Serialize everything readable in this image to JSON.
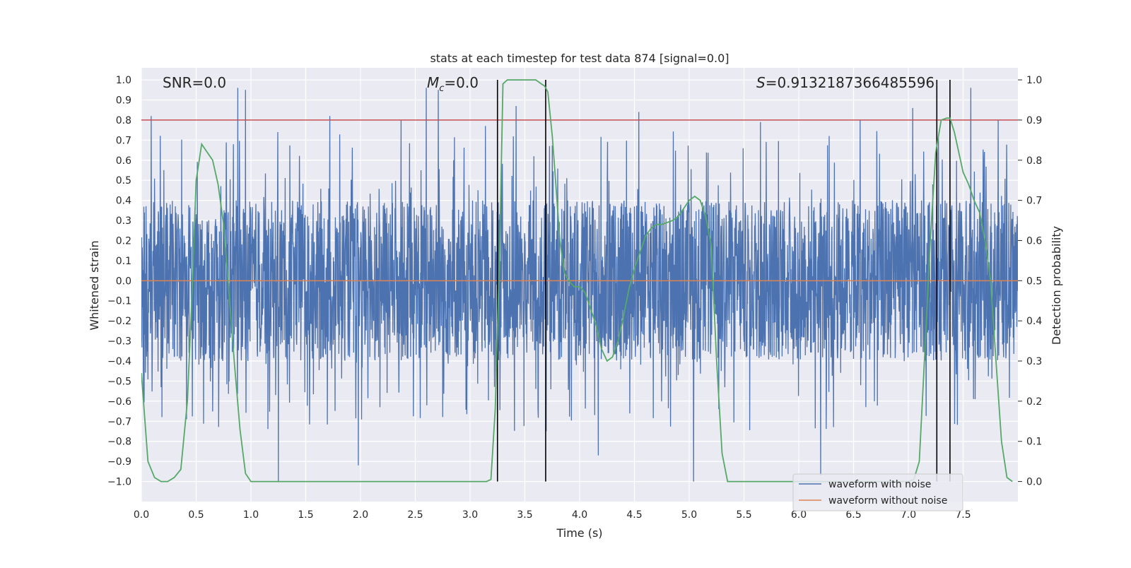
{
  "chart_data": {
    "type": "line",
    "title": "stats at each timestep for test data 874 [signal=0.0]",
    "xlabel": "Time (s)",
    "ylabel": "Whitened strain",
    "y2label": "Detection probability",
    "xlim": [
      0.0,
      8.0
    ],
    "ylim": [
      -1.1,
      1.06
    ],
    "y2lim": [
      -0.05,
      1.03
    ],
    "xticks": [
      "0.0",
      "0.5",
      "1.0",
      "1.5",
      "2.0",
      "2.5",
      "3.0",
      "3.5",
      "4.0",
      "4.5",
      "5.0",
      "5.5",
      "6.0",
      "6.5",
      "7.0",
      "7.5"
    ],
    "xtick_values": [
      0.0,
      0.5,
      1.0,
      1.5,
      2.0,
      2.5,
      3.0,
      3.5,
      4.0,
      4.5,
      5.0,
      5.5,
      6.0,
      6.5,
      7.0,
      7.5
    ],
    "yticks": [
      "−1.0",
      "−0.9",
      "−0.8",
      "−0.7",
      "−0.6",
      "−0.5",
      "−0.4",
      "−0.3",
      "−0.2",
      "−0.1",
      "0.0",
      "0.1",
      "0.2",
      "0.3",
      "0.4",
      "0.5",
      "0.6",
      "0.7",
      "0.8",
      "0.9",
      "1.0"
    ],
    "ytick_values": [
      -1.0,
      -0.9,
      -0.8,
      -0.7,
      -0.6,
      -0.5,
      -0.4,
      -0.3,
      -0.2,
      -0.1,
      0.0,
      0.1,
      0.2,
      0.3,
      0.4,
      0.5,
      0.6,
      0.7,
      0.8,
      0.9,
      1.0
    ],
    "y2ticks": [
      "0.0",
      "0.1",
      "0.2",
      "0.3",
      "0.4",
      "0.5",
      "0.6",
      "0.7",
      "0.8",
      "0.9",
      "1.0"
    ],
    "y2tick_values": [
      0.0,
      0.1,
      0.2,
      0.3,
      0.4,
      0.5,
      0.6,
      0.7,
      0.8,
      0.9,
      1.0
    ],
    "annotations": {
      "snr": "SNR=0.0",
      "mc_symbol": "M",
      "mc_sub": "c",
      "mc_value": "=0.0",
      "s_symbol": "S",
      "s_value": "=0.9132187366485596"
    },
    "legend": {
      "position": "lower-right",
      "entries": [
        {
          "label": "waveform with noise",
          "color": "#4c72b0"
        },
        {
          "label": "waveform without noise",
          "color": "#dd8452"
        }
      ]
    },
    "threshold": {
      "value": 0.9,
      "axis": "y2",
      "color": "#c44e52"
    },
    "clean_waveform_value": 0.0,
    "vertical_markers": [
      3.25,
      3.69,
      7.26,
      7.38
    ],
    "noise_envelope": {
      "typical_upper": 0.4,
      "typical_lower": -0.4,
      "max": 0.96,
      "min": -1.0
    },
    "series": [
      {
        "name": "waveform with noise",
        "color": "#4c72b0",
        "style": "dense-noise",
        "spikes": [
          [
            0.09,
            0.82
          ],
          [
            0.88,
            0.96
          ],
          [
            0.95,
            0.95
          ],
          [
            1.25,
            -1.0
          ],
          [
            1.72,
            0.82
          ],
          [
            1.98,
            -0.92
          ],
          [
            2.37,
            0.8
          ],
          [
            2.6,
            0.96
          ],
          [
            2.71,
            0.95
          ],
          [
            3.14,
            0.77
          ],
          [
            3.42,
            0.87
          ],
          [
            4.17,
            -0.87
          ],
          [
            4.54,
            0.84
          ],
          [
            5.04,
            -1.0
          ],
          [
            5.65,
            0.79
          ],
          [
            6.2,
            -0.97
          ],
          [
            6.56,
            0.8
          ],
          [
            7.04,
            0.86
          ],
          [
            7.57,
            0.96
          ],
          [
            7.82,
            0.8
          ]
        ]
      },
      {
        "name": "waveform without noise",
        "color": "#dd8452",
        "values_constant": 0.0
      },
      {
        "name": "detection probability",
        "color": "#55a868",
        "axis": "y2",
        "x": [
          0.0,
          0.06,
          0.12,
          0.18,
          0.24,
          0.3,
          0.36,
          0.42,
          0.46,
          0.5,
          0.55,
          0.6,
          0.65,
          0.7,
          0.75,
          0.8,
          0.85,
          0.9,
          0.95,
          1.0,
          1.2,
          1.5,
          2.0,
          2.5,
          3.0,
          3.1,
          3.15,
          3.19,
          3.23,
          3.27,
          3.3,
          3.34,
          3.38,
          3.42,
          3.5,
          3.6,
          3.65,
          3.68,
          3.71,
          3.75,
          3.78,
          3.82,
          3.86,
          3.9,
          3.95,
          4.0,
          4.05,
          4.1,
          4.15,
          4.2,
          4.25,
          4.3,
          4.35,
          4.4,
          4.45,
          4.5,
          4.55,
          4.6,
          4.65,
          4.7,
          4.75,
          4.8,
          4.85,
          4.9,
          4.95,
          5.0,
          5.05,
          5.1,
          5.15,
          5.2,
          5.25,
          5.3,
          5.35,
          5.4,
          5.5,
          6.0,
          6.5,
          7.0,
          7.05,
          7.1,
          7.15,
          7.2,
          7.25,
          7.3,
          7.35,
          7.38,
          7.42,
          7.46,
          7.5,
          7.55,
          7.6,
          7.65,
          7.7,
          7.75,
          7.8,
          7.85,
          7.9,
          7.95
        ],
        "y": [
          0.27,
          0.05,
          0.01,
          0.0,
          0.0,
          0.01,
          0.03,
          0.2,
          0.45,
          0.75,
          0.84,
          0.82,
          0.8,
          0.74,
          0.64,
          0.47,
          0.29,
          0.13,
          0.02,
          0.0,
          0.0,
          0.0,
          0.0,
          0.0,
          0.0,
          0.0,
          0.0,
          0.005,
          0.18,
          0.58,
          0.99,
          1.0,
          1.0,
          1.0,
          1.0,
          1.0,
          0.99,
          0.985,
          0.97,
          0.86,
          0.75,
          0.6,
          0.52,
          0.5,
          0.485,
          0.485,
          0.47,
          0.43,
          0.39,
          0.33,
          0.3,
          0.31,
          0.35,
          0.41,
          0.48,
          0.53,
          0.57,
          0.61,
          0.63,
          0.64,
          0.64,
          0.645,
          0.65,
          0.66,
          0.68,
          0.7,
          0.71,
          0.7,
          0.66,
          0.59,
          0.3,
          0.07,
          0.0,
          0.0,
          0.0,
          0.0,
          0.0,
          0.0,
          0.005,
          0.05,
          0.32,
          0.6,
          0.82,
          0.9,
          0.905,
          0.905,
          0.87,
          0.82,
          0.77,
          0.74,
          0.7,
          0.67,
          0.6,
          0.5,
          0.3,
          0.1,
          0.01,
          0.0
        ]
      }
    ]
  }
}
